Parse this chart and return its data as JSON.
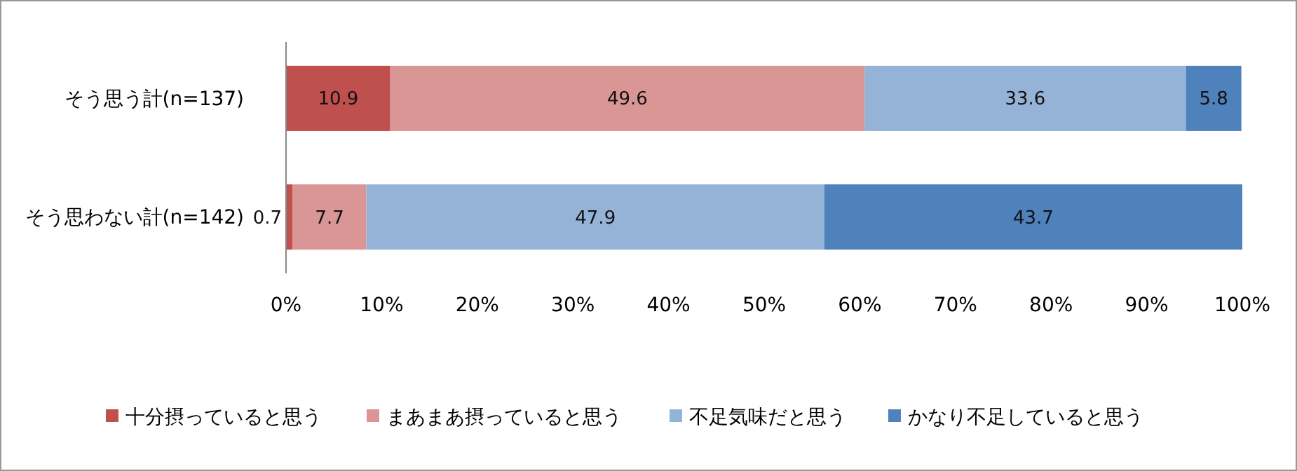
{
  "chart_data": {
    "type": "bar",
    "orientation": "horizontal",
    "stacked": true,
    "categories": [
      "そう思う計(n=137)",
      "そう思わない計(n=142)"
    ],
    "series": [
      {
        "name": "十分摂っていると思う",
        "color": "#c0504d",
        "values": [
          10.9,
          0.7
        ]
      },
      {
        "name": "まあまあ摂っていると思う",
        "color": "#d99694",
        "values": [
          49.6,
          7.7
        ]
      },
      {
        "name": "不足気味だと思う",
        "color": "#95b3d7",
        "values": [
          33.6,
          47.9
        ]
      },
      {
        "name": "かなり不足していると思う",
        "color": "#4f81bd",
        "values": [
          5.8,
          43.7
        ]
      }
    ],
    "xlim": [
      0,
      100
    ],
    "xticks": [
      {
        "value": 0,
        "label": "0%"
      },
      {
        "value": 10,
        "label": "10%"
      },
      {
        "value": 20,
        "label": "20%"
      },
      {
        "value": 30,
        "label": "30%"
      },
      {
        "value": 40,
        "label": "40%"
      },
      {
        "value": 50,
        "label": "50%"
      },
      {
        "value": 60,
        "label": "60%"
      },
      {
        "value": 70,
        "label": "70%"
      },
      {
        "value": 80,
        "label": "80%"
      },
      {
        "value": 90,
        "label": "90%"
      },
      {
        "value": 100,
        "label": "100%"
      }
    ],
    "data_labels": true,
    "grid": false,
    "legend": "bottom"
  }
}
